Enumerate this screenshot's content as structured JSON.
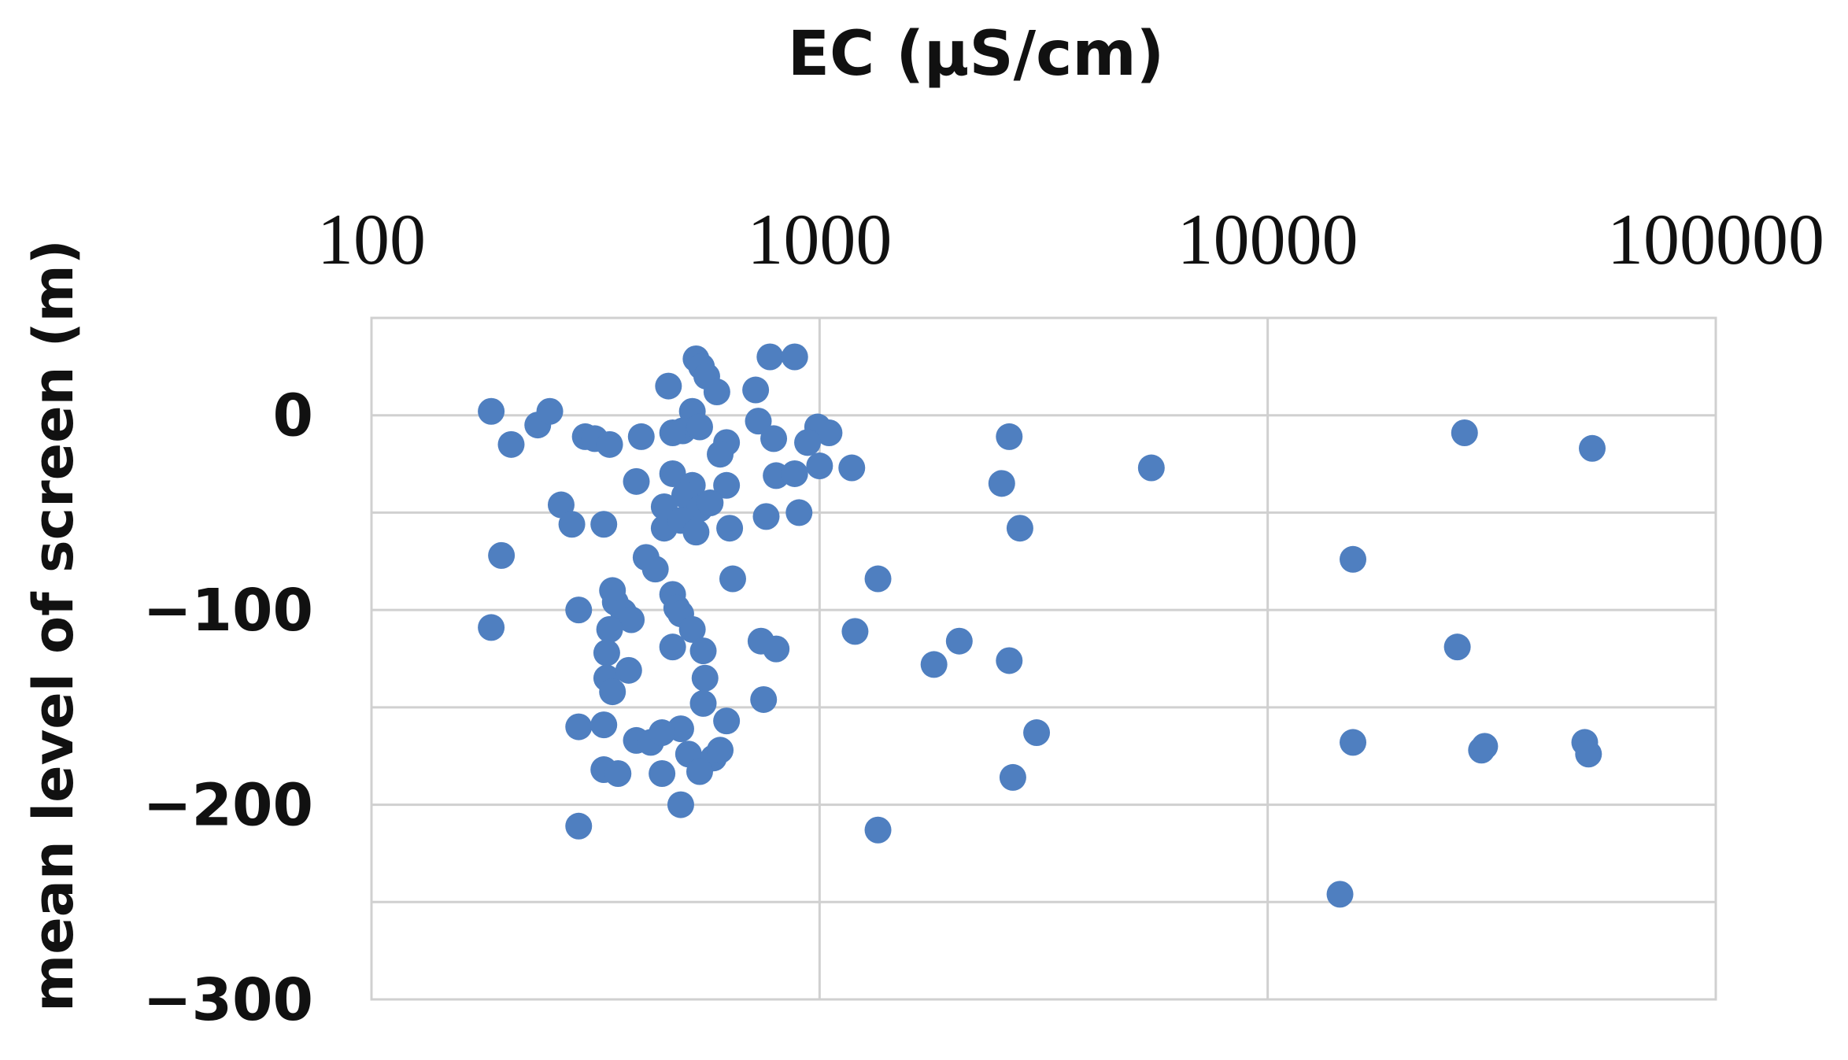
{
  "chart_data": {
    "type": "scatter",
    "title": "",
    "xlabel": "EC (µS/cm)",
    "ylabel": "mean level of screen (m)",
    "x_scale": "log",
    "xlim": [
      100,
      100000
    ],
    "ylim": [
      -300,
      50
    ],
    "x_ticks": [
      {
        "value": 100,
        "label": "100"
      },
      {
        "value": 1000,
        "label": "1000"
      },
      {
        "value": 10000,
        "label": "10000"
      },
      {
        "value": 100000,
        "label": "100000"
      }
    ],
    "y_ticks": [
      {
        "value": 0,
        "label": "0"
      },
      {
        "value": -100,
        "label": "−100"
      },
      {
        "value": -200,
        "label": "−200"
      },
      {
        "value": -300,
        "label": "−300"
      }
    ],
    "x_axis_position": "top",
    "grid": true,
    "legend": "none",
    "marker_color": "#4f7fc0",
    "gridline_color": "#d0d0d0",
    "series": [
      {
        "points": [
          {
            "x": 530,
            "y": 29
          },
          {
            "x": 545,
            "y": 25
          },
          {
            "x": 560,
            "y": 20
          },
          {
            "x": 775,
            "y": 30
          },
          {
            "x": 880,
            "y": 30
          },
          {
            "x": 460,
            "y": 15
          },
          {
            "x": 590,
            "y": 12
          },
          {
            "x": 720,
            "y": 13
          },
          {
            "x": 185,
            "y": 2
          },
          {
            "x": 235,
            "y": -5
          },
          {
            "x": 250,
            "y": 2
          },
          {
            "x": 520,
            "y": 2
          },
          {
            "x": 495,
            "y": -8
          },
          {
            "x": 540,
            "y": -6
          },
          {
            "x": 730,
            "y": -3
          },
          {
            "x": 990,
            "y": -6
          },
          {
            "x": 1050,
            "y": -9
          },
          {
            "x": 205,
            "y": -15
          },
          {
            "x": 300,
            "y": -11
          },
          {
            "x": 315,
            "y": -12
          },
          {
            "x": 340,
            "y": -15
          },
          {
            "x": 400,
            "y": -11
          },
          {
            "x": 470,
            "y": -9
          },
          {
            "x": 620,
            "y": -14
          },
          {
            "x": 790,
            "y": -12
          },
          {
            "x": 940,
            "y": -14
          },
          {
            "x": 2650,
            "y": -11
          },
          {
            "x": 27500,
            "y": -9
          },
          {
            "x": 53000,
            "y": -17
          },
          {
            "x": 600,
            "y": -20
          },
          {
            "x": 1000,
            "y": -26
          },
          {
            "x": 1180,
            "y": -27
          },
          {
            "x": 5500,
            "y": -27
          },
          {
            "x": 390,
            "y": -34
          },
          {
            "x": 470,
            "y": -30
          },
          {
            "x": 520,
            "y": -36
          },
          {
            "x": 620,
            "y": -36
          },
          {
            "x": 800,
            "y": -31
          },
          {
            "x": 880,
            "y": -30
          },
          {
            "x": 2550,
            "y": -35
          },
          {
            "x": 265,
            "y": -46
          },
          {
            "x": 450,
            "y": -47
          },
          {
            "x": 500,
            "y": -41
          },
          {
            "x": 540,
            "y": -48
          },
          {
            "x": 570,
            "y": -45
          },
          {
            "x": 760,
            "y": -52
          },
          {
            "x": 900,
            "y": -50
          },
          {
            "x": 280,
            "y": -56
          },
          {
            "x": 330,
            "y": -56
          },
          {
            "x": 450,
            "y": -58
          },
          {
            "x": 490,
            "y": -54
          },
          {
            "x": 530,
            "y": -60
          },
          {
            "x": 630,
            "y": -58
          },
          {
            "x": 2800,
            "y": -58
          },
          {
            "x": 195,
            "y": -72
          },
          {
            "x": 410,
            "y": -73
          },
          {
            "x": 430,
            "y": -79
          },
          {
            "x": 15500,
            "y": -74
          },
          {
            "x": 640,
            "y": -84
          },
          {
            "x": 1350,
            "y": -84
          },
          {
            "x": 345,
            "y": -90
          },
          {
            "x": 350,
            "y": -96
          },
          {
            "x": 470,
            "y": -92
          },
          {
            "x": 480,
            "y": -99
          },
          {
            "x": 290,
            "y": -100
          },
          {
            "x": 365,
            "y": -101
          },
          {
            "x": 380,
            "y": -105
          },
          {
            "x": 490,
            "y": -102
          },
          {
            "x": 185,
            "y": -109
          },
          {
            "x": 340,
            "y": -110
          },
          {
            "x": 520,
            "y": -110
          },
          {
            "x": 1200,
            "y": -111
          },
          {
            "x": 740,
            "y": -116
          },
          {
            "x": 800,
            "y": -120
          },
          {
            "x": 2050,
            "y": -116
          },
          {
            "x": 335,
            "y": -122
          },
          {
            "x": 470,
            "y": -119
          },
          {
            "x": 550,
            "y": -121
          },
          {
            "x": 26500,
            "y": -119
          },
          {
            "x": 1800,
            "y": -128
          },
          {
            "x": 2650,
            "y": -126
          },
          {
            "x": 335,
            "y": -135
          },
          {
            "x": 375,
            "y": -131
          },
          {
            "x": 555,
            "y": -135
          },
          {
            "x": 345,
            "y": -142
          },
          {
            "x": 550,
            "y": -148
          },
          {
            "x": 750,
            "y": -146
          },
          {
            "x": 290,
            "y": -160
          },
          {
            "x": 330,
            "y": -159
          },
          {
            "x": 490,
            "y": -161
          },
          {
            "x": 620,
            "y": -157
          },
          {
            "x": 3050,
            "y": -163
          },
          {
            "x": 390,
            "y": -167
          },
          {
            "x": 420,
            "y": -168
          },
          {
            "x": 445,
            "y": -163
          },
          {
            "x": 15500,
            "y": -168
          },
          {
            "x": 30500,
            "y": -170
          },
          {
            "x": 30000,
            "y": -172
          },
          {
            "x": 51000,
            "y": -168
          },
          {
            "x": 52000,
            "y": -174
          },
          {
            "x": 510,
            "y": -174
          },
          {
            "x": 580,
            "y": -176
          },
          {
            "x": 600,
            "y": -172
          },
          {
            "x": 330,
            "y": -182
          },
          {
            "x": 355,
            "y": -184
          },
          {
            "x": 445,
            "y": -184
          },
          {
            "x": 540,
            "y": -183
          },
          {
            "x": 2700,
            "y": -186
          },
          {
            "x": 490,
            "y": -200
          },
          {
            "x": 290,
            "y": -211
          },
          {
            "x": 1350,
            "y": -213
          },
          {
            "x": 14500,
            "y": -246
          }
        ]
      }
    ]
  }
}
